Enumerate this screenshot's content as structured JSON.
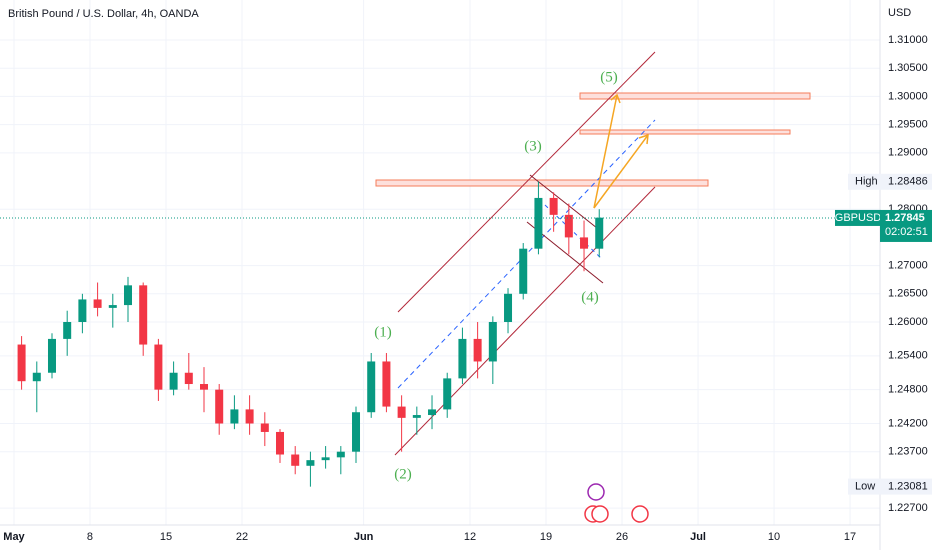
{
  "chart_data": {
    "type": "candlestick",
    "title": "British Pound / U.S. Dollar, 4h, OANDA",
    "y_axis_label": "USD",
    "x": [
      0.5,
      1.5,
      2.5,
      3.5,
      4.5,
      5.5,
      6.5,
      7.5,
      8.5,
      9.5,
      10.5,
      11.5,
      12.5,
      13.5,
      14.5,
      15.5,
      16.5,
      17.5,
      18.5,
      19.5,
      20.5,
      21.5,
      22.5,
      23.5,
      24.5,
      25.5,
      26.5,
      27.5,
      28.5,
      29.5,
      30.5,
      31.5,
      32.5,
      33.5,
      34.5,
      35.5,
      36.5,
      37.5,
      38.5
    ],
    "open": [
      1.256,
      1.2495,
      1.251,
      1.257,
      1.26,
      1.264,
      1.2625,
      1.263,
      1.2665,
      1.256,
      1.248,
      1.251,
      1.249,
      1.248,
      1.242,
      1.2445,
      1.242,
      1.2405,
      1.2365,
      1.2345,
      1.2355,
      1.236,
      1.237,
      1.244,
      1.253,
      1.245,
      1.243,
      1.2435,
      1.2445,
      1.25,
      1.257,
      1.253,
      1.26,
      1.265,
      1.273,
      1.282,
      1.279,
      1.275,
      1.273
    ],
    "high": [
      1.2575,
      1.253,
      1.258,
      1.262,
      1.265,
      1.267,
      1.265,
      1.268,
      1.267,
      1.257,
      1.253,
      1.2545,
      1.252,
      1.249,
      1.247,
      1.247,
      1.244,
      1.241,
      1.238,
      1.237,
      1.238,
      1.238,
      1.245,
      1.2545,
      1.2545,
      1.247,
      1.245,
      1.247,
      1.251,
      1.259,
      1.26,
      1.261,
      1.266,
      1.274,
      1.2849,
      1.283,
      1.281,
      1.278,
      1.28
    ],
    "low": [
      1.248,
      1.244,
      1.25,
      1.254,
      1.258,
      1.261,
      1.259,
      1.26,
      1.254,
      1.246,
      1.247,
      1.248,
      1.244,
      1.24,
      1.241,
      1.24,
      1.238,
      1.235,
      1.233,
      1.2308,
      1.234,
      1.233,
      1.235,
      1.243,
      1.244,
      1.237,
      1.24,
      1.241,
      1.243,
      1.249,
      1.25,
      1.249,
      1.258,
      1.264,
      1.272,
      1.276,
      1.272,
      1.269,
      1.2715
    ],
    "close": [
      1.2495,
      1.251,
      1.257,
      1.26,
      1.264,
      1.2625,
      1.263,
      1.2665,
      1.256,
      1.248,
      1.251,
      1.249,
      1.248,
      1.242,
      1.2445,
      1.242,
      1.2405,
      1.2365,
      1.2345,
      1.2355,
      1.236,
      1.237,
      1.244,
      1.253,
      1.245,
      1.243,
      1.2435,
      1.2445,
      1.25,
      1.257,
      1.253,
      1.26,
      1.265,
      1.273,
      1.282,
      1.279,
      1.275,
      1.273,
      1.2785
    ],
    "up_color": "#089981",
    "down_color": "#f23645",
    "xlim": [
      -0.92,
      56.97
    ],
    "xticks": [
      {
        "value": 0,
        "label": "May"
      },
      {
        "value": 5,
        "label": "8"
      },
      {
        "value": 10,
        "label": "15"
      },
      {
        "value": 15,
        "label": "22"
      },
      {
        "value": 23,
        "label": "Jun"
      },
      {
        "value": 30,
        "label": "12"
      },
      {
        "value": 35,
        "label": "19"
      },
      {
        "value": 40,
        "label": "26"
      },
      {
        "value": 45,
        "label": "Jul"
      },
      {
        "value": 50,
        "label": "10"
      },
      {
        "value": 55,
        "label": "17"
      }
    ],
    "ylim": [
      1.224,
      1.3171
    ],
    "yticks": [
      {
        "value": 1.31,
        "label": "1.31000"
      },
      {
        "value": 1.305,
        "label": "1.30500"
      },
      {
        "value": 1.3,
        "label": "1.30000"
      },
      {
        "value": 1.295,
        "label": "1.29500"
      },
      {
        "value": 1.29,
        "label": "1.29000"
      },
      {
        "value": 1.28,
        "label": "1.28000"
      },
      {
        "value": 1.27,
        "label": "1.27000"
      },
      {
        "value": 1.265,
        "label": "1.26500"
      },
      {
        "value": 1.26,
        "label": "1.26000"
      },
      {
        "value": 1.254,
        "label": "1.25400"
      },
      {
        "value": 1.248,
        "label": "1.24800"
      },
      {
        "value": 1.242,
        "label": "1.24200"
      },
      {
        "value": 1.237,
        "label": "1.23700"
      },
      {
        "value": 1.227,
        "label": "1.22700"
      }
    ],
    "grid": true,
    "annotations": [
      "(1)",
      "(2)",
      "(3)",
      "(4)",
      "(5)"
    ],
    "price_labels": [
      {
        "label": "High",
        "value": 1.28486
      },
      {
        "label": "Low",
        "value": 1.23081
      }
    ],
    "last_price": {
      "label": "GBPUSD",
      "value": 1.27845,
      "countdown": "02:02:51"
    }
  }
}
